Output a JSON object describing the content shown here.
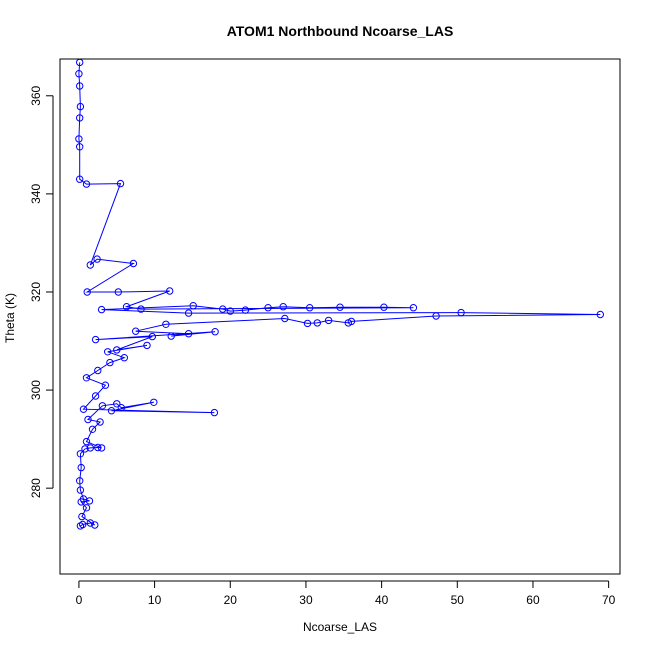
{
  "chart_data": {
    "type": "scatter",
    "title": "ATOM1 Northbound Ncoarse_LAS",
    "xlabel": "Ncoarse_LAS",
    "ylabel": "Theta (K)",
    "xlim": [
      -2.5,
      71.5
    ],
    "ylim": [
      262.5,
      367.5
    ],
    "x_ticks": [
      0,
      10,
      20,
      30,
      40,
      50,
      60,
      70
    ],
    "y_ticks": [
      280,
      300,
      320,
      340,
      360
    ],
    "grid": false,
    "legend": "none",
    "colors": {
      "series": "#0000ff",
      "axis": "#000000"
    },
    "series": [
      {
        "style": "line+open-circle",
        "points": [
          [
            0.2,
            272.3
          ],
          [
            0.5,
            272.6
          ],
          [
            1.5,
            272.9
          ],
          [
            2.1,
            272.5
          ],
          [
            0.4,
            274.2
          ],
          [
            1.0,
            276.0
          ],
          [
            0.3,
            277.2
          ],
          [
            1.4,
            277.4
          ],
          [
            0.6,
            277.8
          ],
          [
            0.2,
            279.6
          ],
          [
            0.1,
            281.5
          ],
          [
            0.3,
            284.2
          ],
          [
            0.2,
            287.0
          ],
          [
            0.8,
            288.0
          ],
          [
            1.5,
            288.2
          ],
          [
            2.5,
            288.3
          ],
          [
            3.0,
            288.2
          ],
          [
            1.0,
            289.5
          ],
          [
            1.8,
            292.0
          ],
          [
            2.8,
            293.5
          ],
          [
            1.2,
            294.0
          ],
          [
            3.1,
            296.8
          ],
          [
            5.0,
            297.2
          ],
          [
            5.6,
            296.4
          ],
          [
            9.9,
            297.5
          ],
          [
            4.3,
            295.8
          ],
          [
            17.9,
            295.4
          ],
          [
            0.6,
            296.1
          ],
          [
            2.2,
            298.8
          ],
          [
            3.5,
            301.0
          ],
          [
            1.0,
            302.5
          ],
          [
            2.5,
            304.0
          ],
          [
            4.1,
            305.6
          ],
          [
            6.0,
            306.6
          ],
          [
            3.8,
            307.8
          ],
          [
            9.0,
            309.1
          ],
          [
            5.0,
            308.2
          ],
          [
            9.7,
            310.9
          ],
          [
            2.2,
            310.3
          ],
          [
            18.0,
            311.9
          ],
          [
            12.2,
            311.0
          ],
          [
            14.5,
            311.5
          ],
          [
            7.5,
            312.0
          ],
          [
            11.5,
            313.4
          ],
          [
            27.2,
            314.6
          ],
          [
            30.2,
            313.6
          ],
          [
            31.5,
            313.7
          ],
          [
            33.0,
            314.2
          ],
          [
            35.6,
            313.7
          ],
          [
            36.0,
            314.0
          ],
          [
            47.2,
            315.1
          ],
          [
            68.9,
            315.4
          ],
          [
            50.5,
            315.8
          ],
          [
            14.5,
            315.7
          ],
          [
            3.0,
            316.4
          ],
          [
            15.1,
            317.2
          ],
          [
            19.0,
            316.5
          ],
          [
            20.0,
            316.1
          ],
          [
            22.0,
            316.3
          ],
          [
            25.0,
            316.8
          ],
          [
            27.0,
            317.0
          ],
          [
            30.5,
            316.8
          ],
          [
            34.5,
            316.9
          ],
          [
            40.3,
            316.9
          ],
          [
            44.2,
            316.8
          ],
          [
            8.2,
            316.5
          ],
          [
            6.3,
            317.0
          ],
          [
            12.0,
            320.2
          ],
          [
            5.2,
            320.0
          ],
          [
            1.1,
            320.0
          ],
          [
            7.2,
            325.8
          ],
          [
            2.4,
            326.7
          ],
          [
            1.5,
            325.5
          ],
          [
            5.5,
            342.1
          ],
          [
            1.0,
            342.0
          ],
          [
            0.1,
            343.0
          ],
          [
            0.1,
            349.6
          ],
          [
            0.0,
            351.2
          ],
          [
            0.1,
            355.5
          ],
          [
            0.2,
            357.8
          ],
          [
            0.1,
            362.0
          ],
          [
            0.0,
            364.5
          ],
          [
            0.1,
            366.8
          ]
        ]
      }
    ]
  }
}
